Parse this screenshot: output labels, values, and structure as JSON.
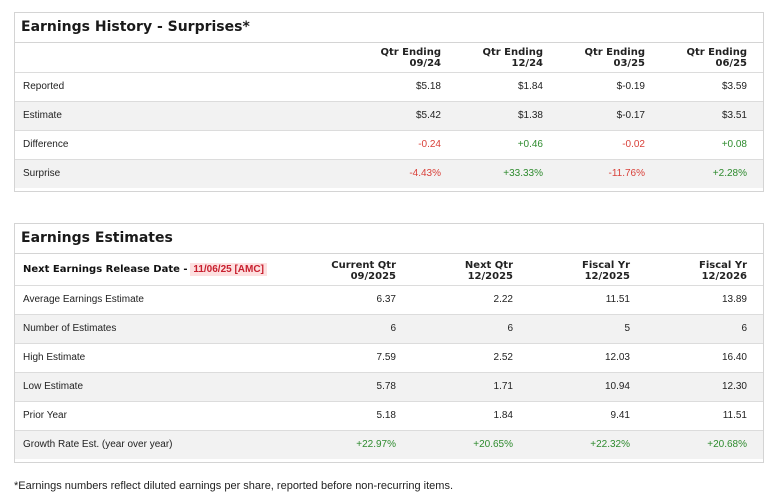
{
  "surprises": {
    "title": "Earnings History - Surprises*",
    "columns": [
      {
        "line1": "Qtr Ending",
        "line2": "09/24"
      },
      {
        "line1": "Qtr Ending",
        "line2": "12/24"
      },
      {
        "line1": "Qtr Ending",
        "line2": "03/25"
      },
      {
        "line1": "Qtr Ending",
        "line2": "06/25"
      }
    ],
    "rows": [
      {
        "label": "Reported",
        "values": [
          "$5.18",
          "$1.84",
          "$-0.19",
          "$3.59"
        ]
      },
      {
        "label": "Estimate",
        "values": [
          "$5.42",
          "$1.38",
          "$-0.17",
          "$3.51"
        ]
      },
      {
        "label": "Difference",
        "values": [
          "-0.24",
          "+0.46",
          "-0.02",
          "+0.08"
        ]
      },
      {
        "label": "Surprise",
        "values": [
          "-4.43%",
          "+33.33%",
          "-11.76%",
          "+2.28%"
        ]
      }
    ]
  },
  "estimates": {
    "title": "Earnings Estimates",
    "release_label": "Next Earnings Release Date -",
    "release_date": "11/06/25 [AMC]",
    "columns": [
      {
        "line1": "Current Qtr",
        "line2": "09/2025"
      },
      {
        "line1": "Next Qtr",
        "line2": "12/2025"
      },
      {
        "line1": "Fiscal Yr",
        "line2": "12/2025"
      },
      {
        "line1": "Fiscal Yr",
        "line2": "12/2026"
      }
    ],
    "rows": [
      {
        "label": "Average Earnings Estimate",
        "values": [
          "6.37",
          "2.22",
          "11.51",
          "13.89"
        ]
      },
      {
        "label": "Number of Estimates",
        "values": [
          "6",
          "6",
          "5",
          "6"
        ]
      },
      {
        "label": "High Estimate",
        "values": [
          "7.59",
          "2.52",
          "12.03",
          "16.40"
        ]
      },
      {
        "label": "Low Estimate",
        "values": [
          "5.78",
          "1.71",
          "10.94",
          "12.30"
        ]
      },
      {
        "label": "Prior Year",
        "values": [
          "5.18",
          "1.84",
          "9.41",
          "11.51"
        ]
      },
      {
        "label": "Growth Rate Est. (year over year)",
        "values": [
          "+22.97%",
          "+20.65%",
          "+22.32%",
          "+20.68%"
        ]
      }
    ]
  },
  "colors": {
    "negative": "#d9413a",
    "positive": "#2e8b2e",
    "release_highlight": "#fde0e0"
  },
  "footnote": "*Earnings numbers reflect diluted earnings per share, reported before non-recurring items."
}
